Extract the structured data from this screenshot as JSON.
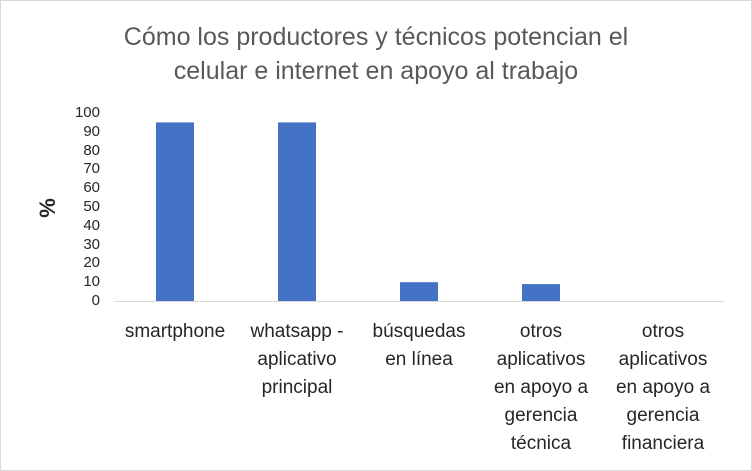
{
  "chart_data": {
    "type": "bar",
    "title": "Cómo los productores y técnicos potencian el celular e internet en apoyo al trabajo",
    "title_lines": [
      "Cómo los productores y técnicos potencian el",
      "celular e internet en apoyo al trabajo"
    ],
    "xlabel": "",
    "ylabel": "%",
    "ylim": [
      0,
      100
    ],
    "yticks": [
      "0",
      "10",
      "20",
      "30",
      "40",
      "50",
      "60",
      "70",
      "80",
      "90",
      "100"
    ],
    "categories": [
      "smartphone",
      "whatsapp - aplicativo principal",
      "búsquedas en línea",
      "otros aplicativos en apoyo a gerencia técnica",
      "otros aplicativos en apoyo a gerencia financiera"
    ],
    "category_lines": [
      [
        "smartphone"
      ],
      [
        "whatsapp -",
        "aplicativo",
        "principal"
      ],
      [
        "búsquedas",
        "en línea"
      ],
      [
        "otros",
        "aplicativos",
        "en apoyo a",
        "gerencia",
        "técnica"
      ],
      [
        "otros",
        "aplicativos",
        "en apoyo a",
        "gerencia",
        "financiera"
      ]
    ],
    "values": [
      95,
      95,
      10,
      9,
      0
    ],
    "bar_color": "#4472c4",
    "axis_color": "#d9d9d9",
    "grid": false,
    "legend": "none"
  }
}
